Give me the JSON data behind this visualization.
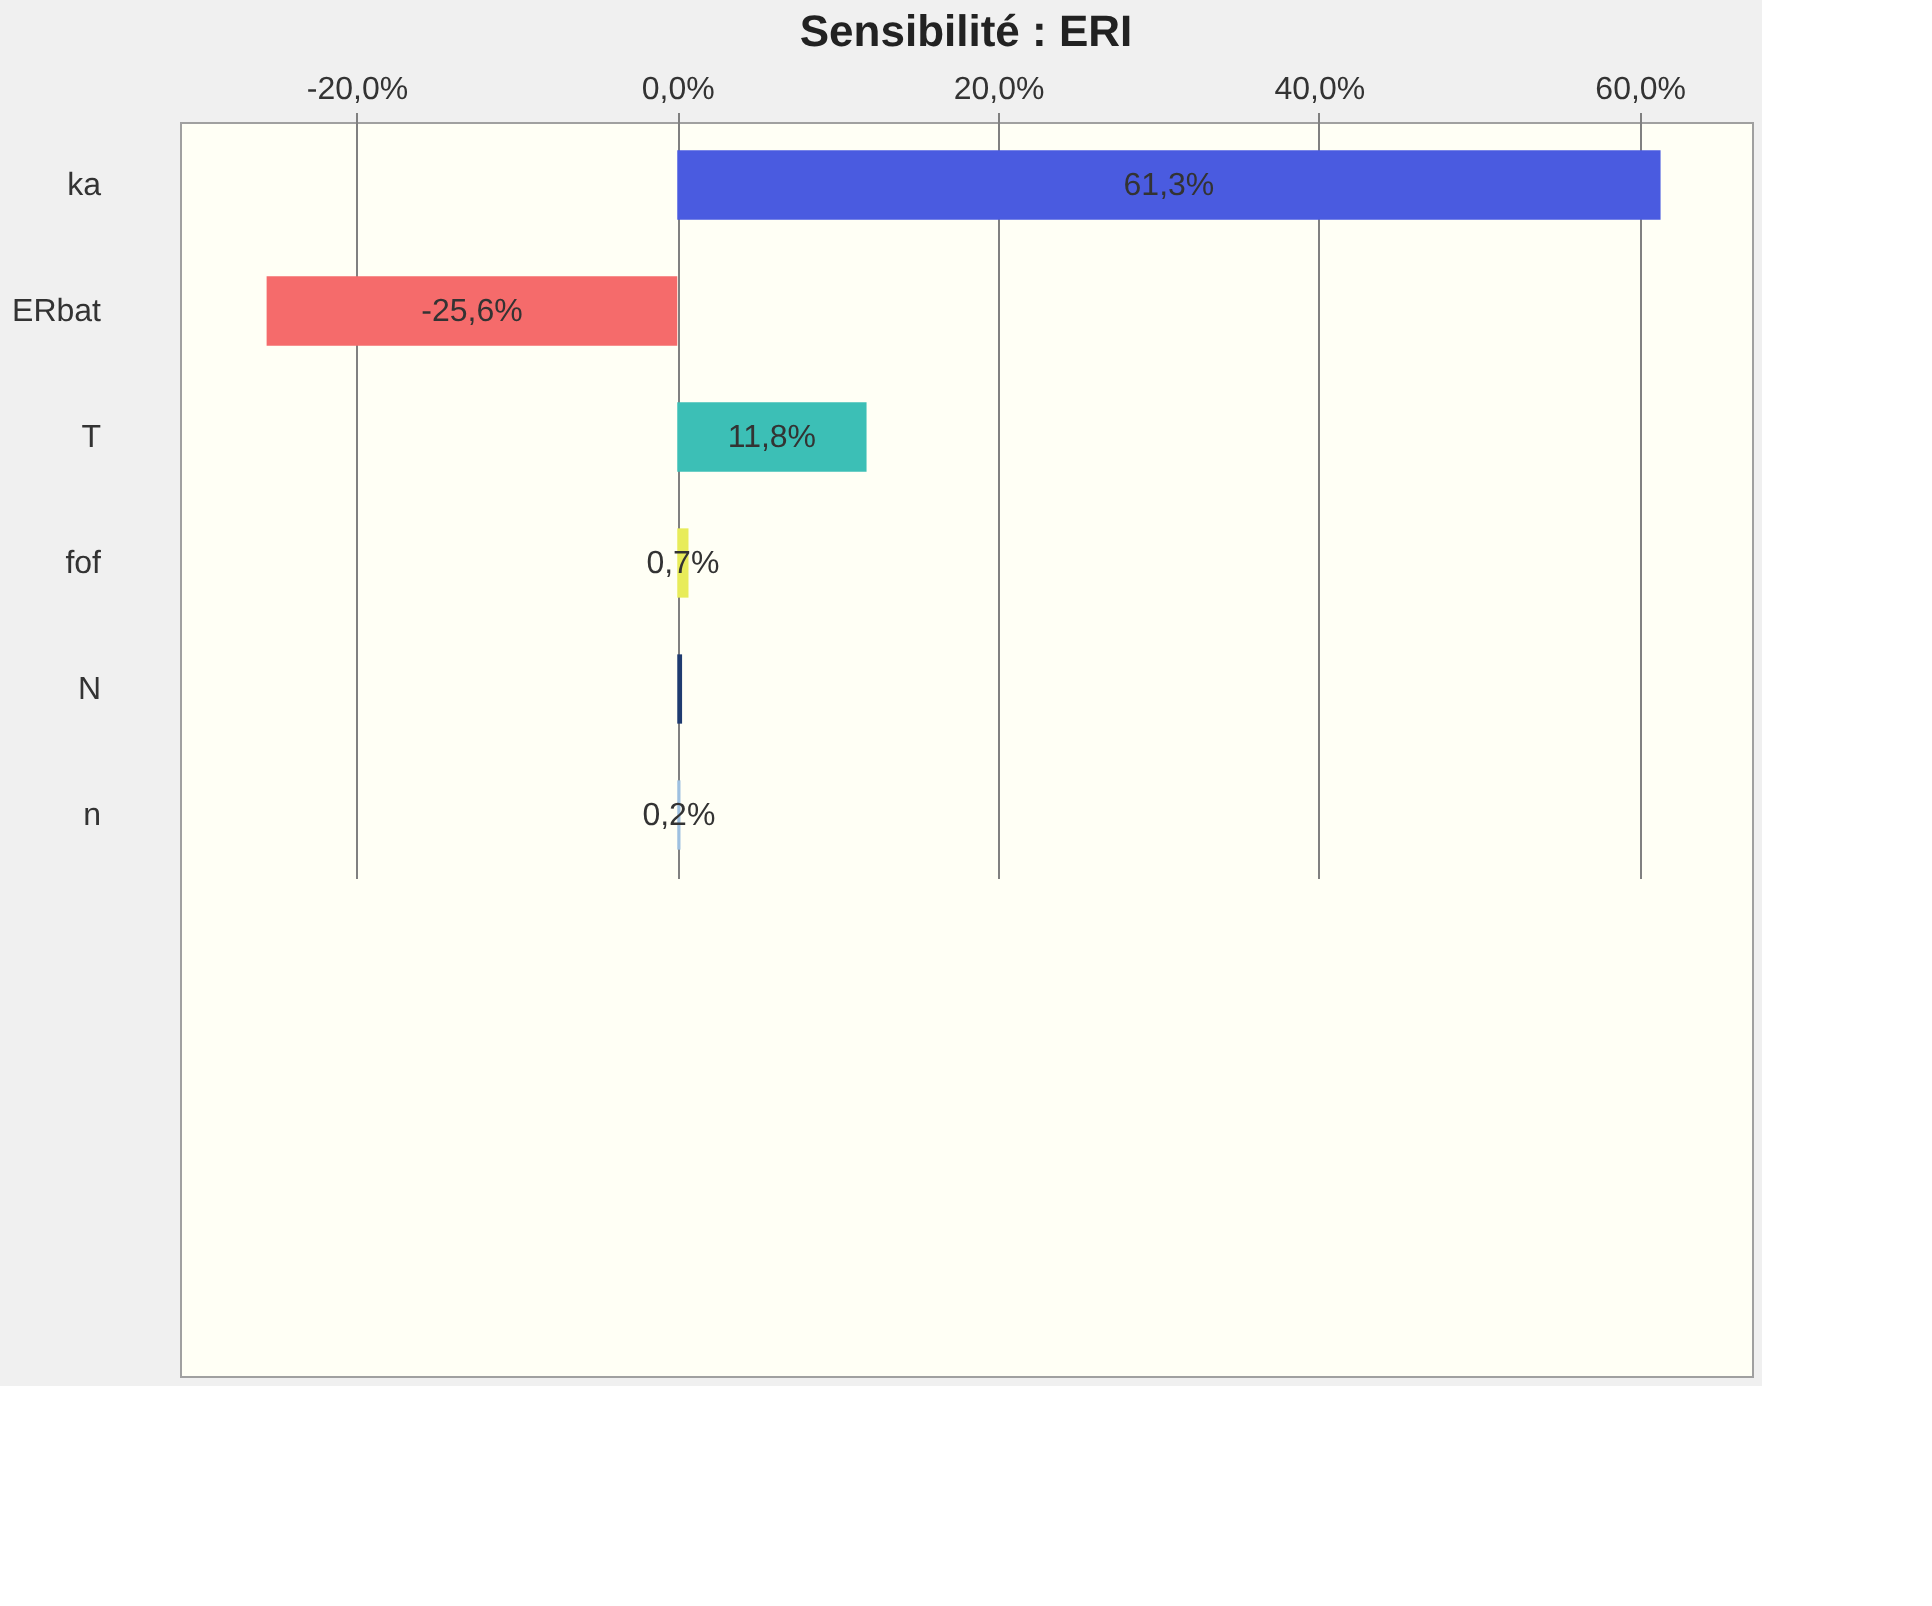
{
  "chart_data": {
    "type": "bar",
    "orientation": "horizontal",
    "title": "Sensibilité : ERI",
    "categories": [
      "ka",
      "ERbat",
      "T",
      "fof",
      "N",
      "n"
    ],
    "values": [
      61.3,
      -25.6,
      11.8,
      0.7,
      0.3,
      0.2
    ],
    "colors": [
      "#4a5be0",
      "#f56b6b",
      "#3cbfb6",
      "#e8ec5a",
      "#1f3b70",
      "#9ec0e0"
    ],
    "value_labels": [
      "61,3%",
      "-25,6%",
      "11,8%",
      "0,7%",
      null,
      "0,2%"
    ],
    "xlim": [
      -31,
      67
    ],
    "xticks": [
      {
        "value": -20,
        "label": "-20,0%"
      },
      {
        "value": 0,
        "label": "0,0%"
      },
      {
        "value": 20,
        "label": "20,0%"
      },
      {
        "value": 40,
        "label": "40,0%"
      },
      {
        "value": 60,
        "label": "60,0%"
      }
    ],
    "grid": "x"
  }
}
